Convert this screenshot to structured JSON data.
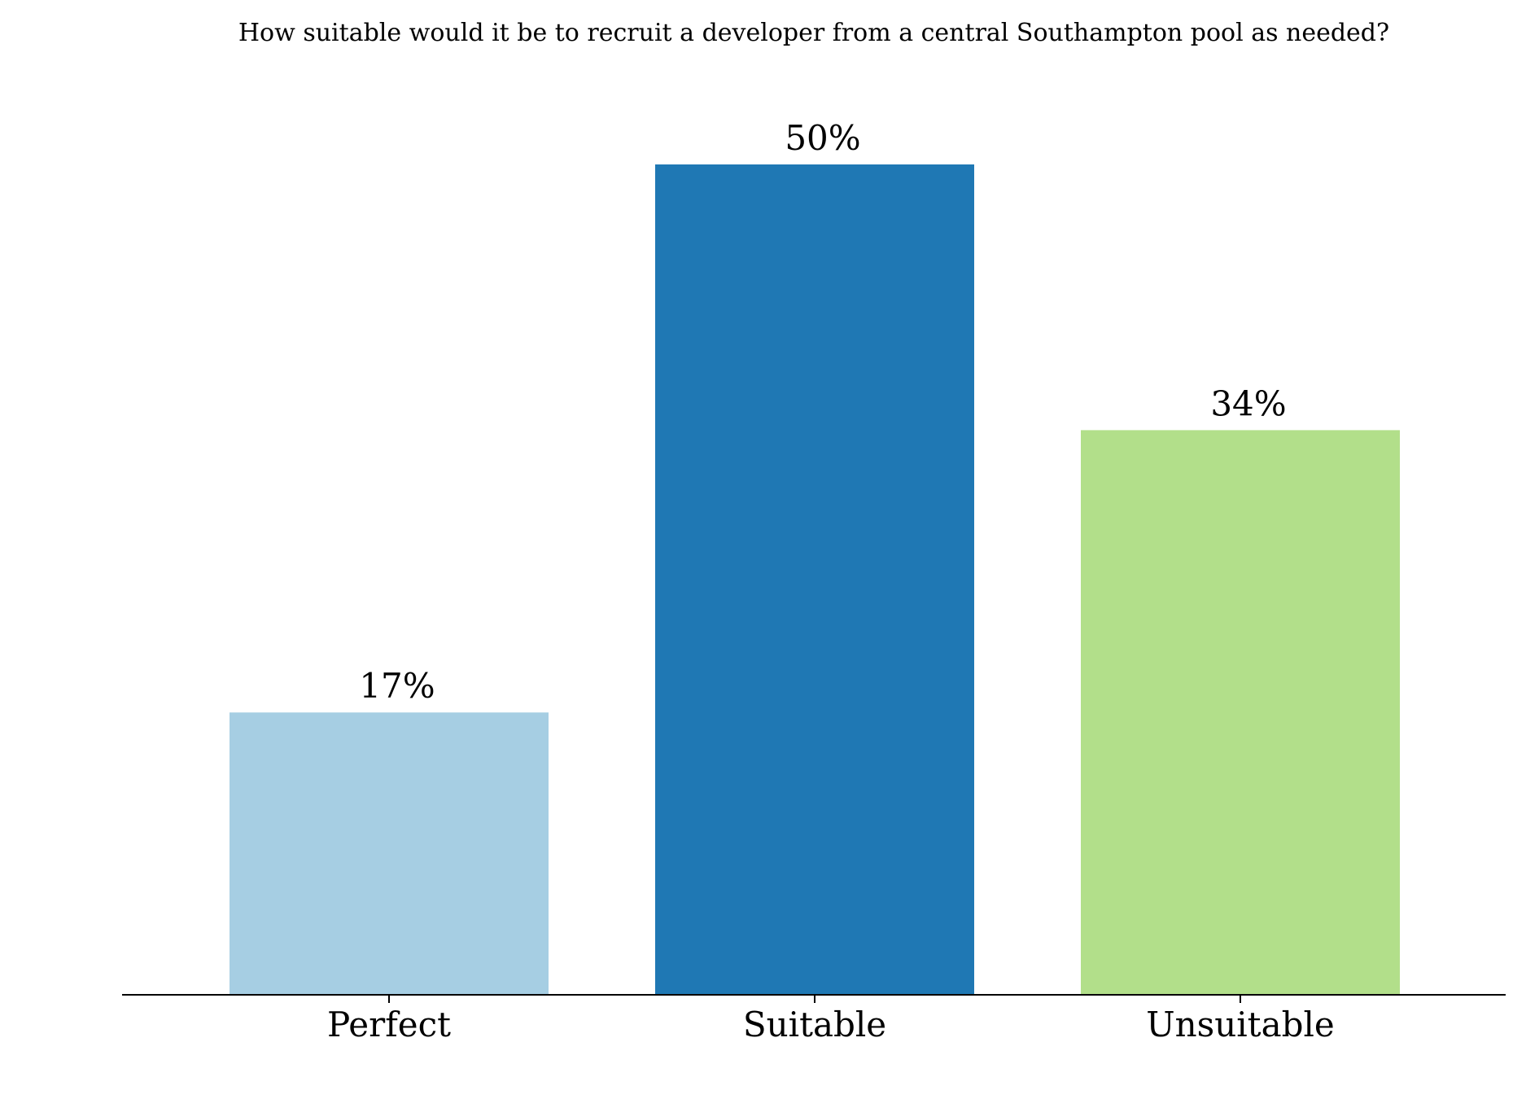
{
  "chart_data": {
    "type": "bar",
    "title": "How suitable would it be to recruit a developer from a central Southampton pool as needed?",
    "xlabel": "",
    "ylabel": "",
    "categories": [
      "Perfect",
      "Suitable",
      "Unsuitable"
    ],
    "values": [
      17,
      50,
      34
    ],
    "value_labels": [
      "17%",
      "50%",
      "34%"
    ],
    "colors": [
      "#a6cee3",
      "#1f78b4",
      "#b2df8a"
    ],
    "ylim": [
      0,
      55
    ],
    "grid": false,
    "legend": "none"
  }
}
